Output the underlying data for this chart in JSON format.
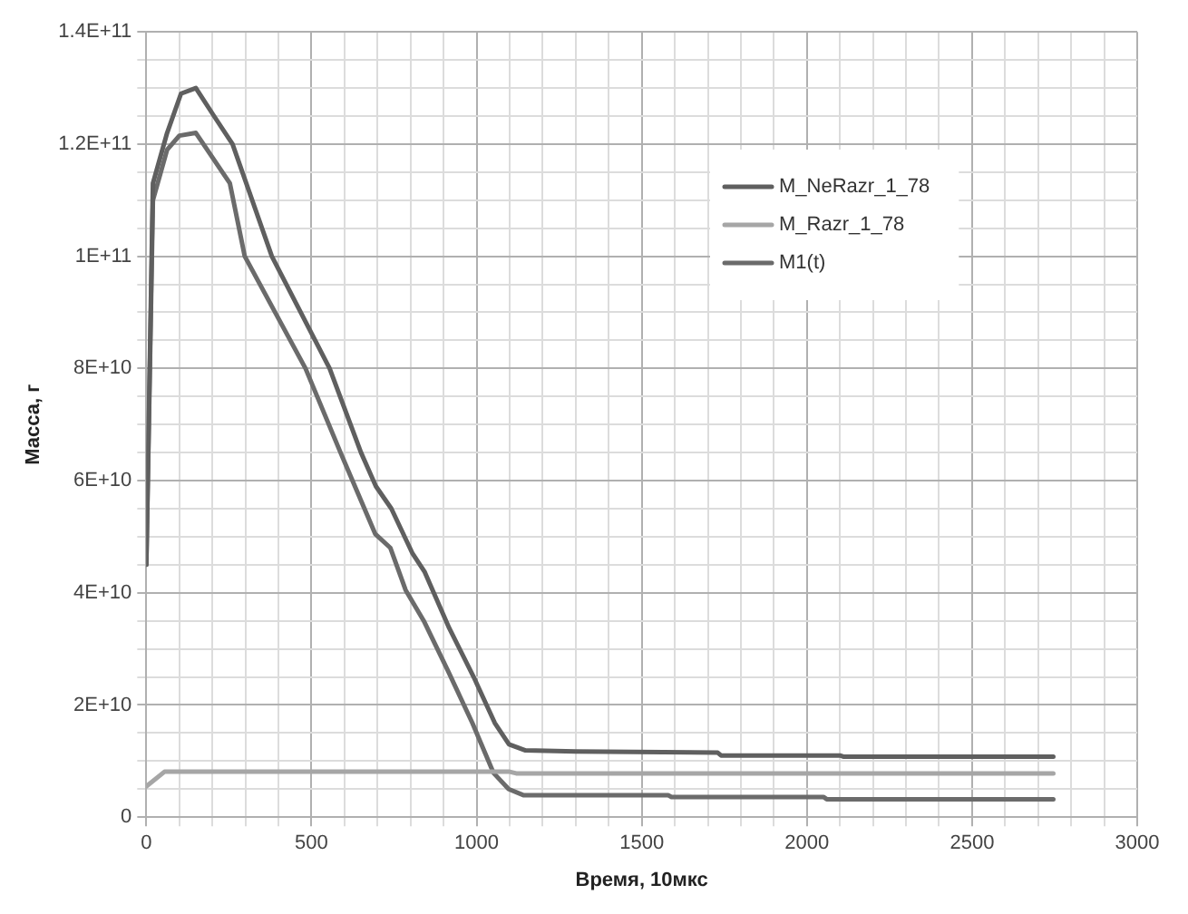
{
  "chart_data": {
    "type": "line",
    "xlabel": "Время, 10мкс",
    "ylabel": "Масса, г",
    "xlim": [
      0,
      3000
    ],
    "ylim": [
      0,
      140000000000
    ],
    "xticks": [
      0,
      {
        "value": 100,
        "label": null
      },
      {
        "value": 200,
        "label": null
      },
      {
        "value": 300,
        "label": null
      },
      {
        "value": 400,
        "label": null
      },
      500,
      {
        "value": 600,
        "label": null
      },
      {
        "value": 700,
        "label": null
      },
      {
        "value": 800,
        "label": null
      },
      {
        "value": 900,
        "label": null
      },
      1000,
      {
        "value": 1100,
        "label": null
      },
      {
        "value": 1200,
        "label": null
      },
      {
        "value": 1300,
        "label": null
      },
      {
        "value": 1400,
        "label": null
      },
      1500,
      {
        "value": 1600,
        "label": null
      },
      {
        "value": 1700,
        "label": null
      },
      {
        "value": 1800,
        "label": null
      },
      {
        "value": 1900,
        "label": null
      },
      2000,
      {
        "value": 2100,
        "label": null
      },
      {
        "value": 2200,
        "label": null
      },
      {
        "value": 2300,
        "label": null
      },
      {
        "value": 2400,
        "label": null
      },
      2500,
      {
        "value": 2600,
        "label": null
      },
      {
        "value": 2700,
        "label": null
      },
      {
        "value": 2800,
        "label": null
      },
      {
        "value": 2900,
        "label": null
      },
      3000
    ],
    "yticks": [
      {
        "value": 0,
        "label": "0"
      },
      {
        "value": 5000000000,
        "label": null
      },
      {
        "value": 10000000000,
        "label": null
      },
      {
        "value": 15000000000,
        "label": null
      },
      {
        "value": 20000000000,
        "label": "2E+10"
      },
      {
        "value": 25000000000,
        "label": null
      },
      {
        "value": 30000000000,
        "label": null
      },
      {
        "value": 35000000000,
        "label": null
      },
      {
        "value": 40000000000,
        "label": "4E+10"
      },
      {
        "value": 45000000000,
        "label": null
      },
      {
        "value": 50000000000,
        "label": null
      },
      {
        "value": 55000000000,
        "label": null
      },
      {
        "value": 60000000000,
        "label": "6E+10"
      },
      {
        "value": 65000000000,
        "label": null
      },
      {
        "value": 70000000000,
        "label": null
      },
      {
        "value": 75000000000,
        "label": null
      },
      {
        "value": 80000000000,
        "label": "8E+10"
      },
      {
        "value": 85000000000,
        "label": null
      },
      {
        "value": 90000000000,
        "label": null
      },
      {
        "value": 95000000000,
        "label": null
      },
      {
        "value": 100000000000,
        "label": "1E+11"
      },
      {
        "value": 105000000000,
        "label": null
      },
      {
        "value": 110000000000,
        "label": null
      },
      {
        "value": 115000000000,
        "label": null
      },
      {
        "value": 120000000000,
        "label": "1.2E+11"
      },
      {
        "value": 125000000000,
        "label": null
      },
      {
        "value": 130000000000,
        "label": null
      },
      {
        "value": 135000000000,
        "label": null
      },
      {
        "value": 140000000000,
        "label": "1.4E+11"
      }
    ],
    "grid": true,
    "legend": "top right",
    "marker": "none",
    "line_style": "solid",
    "series": [
      {
        "name": "M_NeRazr_1_78",
        "color": "#5f5f5f",
        "x": [
          0,
          20,
          63,
          105,
          150,
          205,
          261,
          380,
          555,
          650,
          695,
          742,
          806,
          843,
          917,
          991,
          1055,
          1098,
          1148,
          1300,
          1730,
          1740,
          2100,
          2110,
          2746
        ],
        "values": [
          45000000000,
          113000000000,
          122000000000,
          129000000000,
          130000000000,
          125000000000,
          120000000000,
          100000000000,
          80000000000,
          65000000000,
          59000000000,
          55000000000,
          47000000000,
          43700000000,
          33700000000,
          25000000000,
          16800000000,
          13000000000,
          11900000000,
          11700000000,
          11500000000,
          11000000000,
          11000000000,
          10800000000,
          10800000000
        ]
      },
      {
        "name": "M_Razr_1_78",
        "color": "#a6a6a6",
        "x": [
          0,
          55,
          1100,
          1120,
          2746
        ],
        "values": [
          5500000000,
          8100000000,
          8100000000,
          7800000000,
          7800000000
        ]
      },
      {
        "name": "M1(t)",
        "color": "#6b6b6b",
        "x": [
          0,
          20,
          63,
          100,
          150,
          253,
          298,
          482,
          588,
          693,
          739,
          785,
          840,
          914,
          987,
          1051,
          1097,
          1143,
          1580,
          1590,
          2050,
          2060,
          2746
        ],
        "values": [
          45000000000,
          110000000000,
          119000000000,
          121500000000,
          122000000000,
          113000000000,
          100000000000,
          80000000000,
          65000000000,
          50500000000,
          48000000000,
          40500000000,
          35000000000,
          26000000000,
          16800000000,
          7900000000,
          5000000000,
          3900000000,
          3900000000,
          3600000000,
          3600000000,
          3200000000,
          3200000000
        ]
      }
    ]
  }
}
